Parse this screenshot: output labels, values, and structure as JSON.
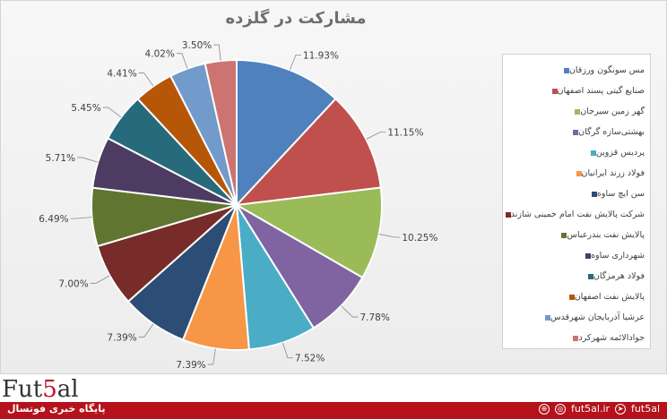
{
  "chart_data": {
    "type": "pie",
    "title": "مشارکت در گلزده",
    "slices": [
      {
        "label": "مس سونگون ورزقان",
        "value": 11.93,
        "value_label": "11.93%",
        "color": "#4f81bd"
      },
      {
        "label": "صنایع گیتی پسند اصفهان",
        "value": 11.15,
        "value_label": "11.15%",
        "color": "#c0504d"
      },
      {
        "label": "گهر زمین سیرجان",
        "value": 10.25,
        "value_label": "10.25%",
        "color": "#9bbb59"
      },
      {
        "label": "بهشتی‌سازه گرگان",
        "value": 7.78,
        "value_label": "7.78%",
        "color": "#8064a2"
      },
      {
        "label": "پردیس قزوین",
        "value": 7.52,
        "value_label": "7.52%",
        "color": "#4bacc6"
      },
      {
        "label": "فولاد زرند ایرانیان",
        "value": 7.39,
        "value_label": "7.39%",
        "color": "#f79646"
      },
      {
        "label": "سن ایچ ساوه",
        "value": 7.39,
        "value_label": "7.39%",
        "color": "#2c4d75"
      },
      {
        "label": "شرکت پالایش نفت امام خمینی شازند",
        "value": 7.0,
        "value_label": "7.00%",
        "color": "#772c2a"
      },
      {
        "label": "پالایش نفت بندرعباس",
        "value": 6.49,
        "value_label": "6.49%",
        "color": "#5f7530"
      },
      {
        "label": "شهرداری ساوه",
        "value": 5.71,
        "value_label": "5.71%",
        "color": "#4d3b62"
      },
      {
        "label": "فولاد هرمزگان",
        "value": 5.45,
        "value_label": "5.45%",
        "color": "#276a7c"
      },
      {
        "label": "پالایش نفت اصفهان",
        "value": 4.41,
        "value_label": "4.41%",
        "color": "#b65708"
      },
      {
        "label": "عرشیا آذربایجان شهرقدس",
        "value": 4.02,
        "value_label": "4.02%",
        "color": "#729aca"
      },
      {
        "label": "جوادالائمه شهرکرد",
        "value": 3.5,
        "value_label": "3.50%",
        "color": "#cd7371"
      }
    ],
    "legend_position": "right"
  },
  "footer": {
    "brand_prefix": "Fut",
    "brand_five": "5",
    "brand_suffix": "al",
    "subtitle": "پایگاه خبری فوتسال",
    "site": "fut5al.ir",
    "handle": "fut5al"
  }
}
